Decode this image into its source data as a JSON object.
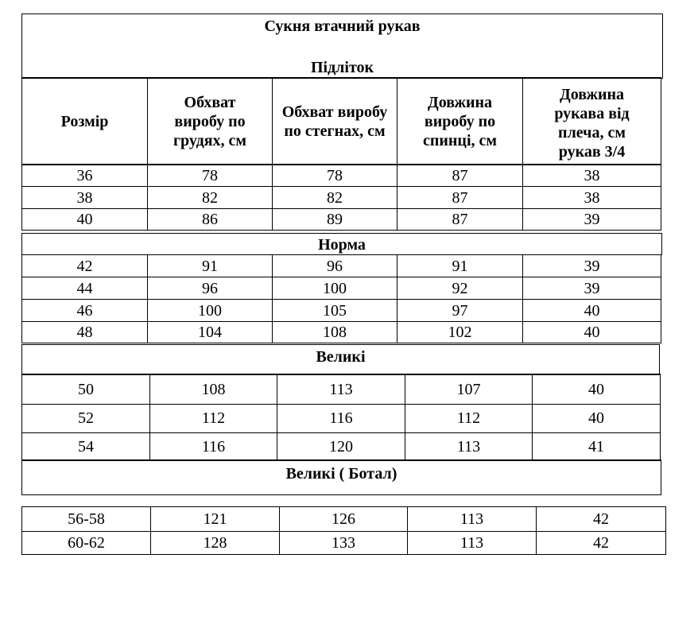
{
  "title": "Сукня втачний рукав",
  "sections": [
    {
      "label": "Підліток",
      "rows": [
        [
          "36",
          "78",
          "78",
          "87",
          "38"
        ],
        [
          "38",
          "82",
          "82",
          "87",
          "38"
        ],
        [
          "40",
          "86",
          "89",
          "87",
          "39"
        ]
      ]
    },
    {
      "label": "Норма",
      "rows": [
        [
          "42",
          "91",
          "96",
          "91",
          "39"
        ],
        [
          "44",
          "96",
          "100",
          "92",
          "39"
        ],
        [
          "46",
          "100",
          "105",
          "97",
          "40"
        ],
        [
          "48",
          "104",
          "108",
          "102",
          "40"
        ]
      ]
    },
    {
      "label": "Великі",
      "rows": [
        [
          "50",
          "108",
          "113",
          "107",
          "40"
        ],
        [
          "52",
          "112",
          "116",
          "112",
          "40"
        ],
        [
          "54",
          "116",
          "120",
          "113",
          "41"
        ]
      ]
    },
    {
      "label": "Великі ( Ботал)",
      "rows": [
        [
          "56-58",
          "121",
          "126",
          "113",
          "42"
        ],
        [
          "60-62",
          "128",
          "133",
          "113",
          "42"
        ]
      ]
    }
  ],
  "columns": [
    "Розмір",
    "Обхват виробу по грудях, см",
    "Обхват виробу по стегнах, см",
    "Довжина виробу по спинці, см",
    "Довжина рукава від плеча, см рукав 3/4"
  ]
}
